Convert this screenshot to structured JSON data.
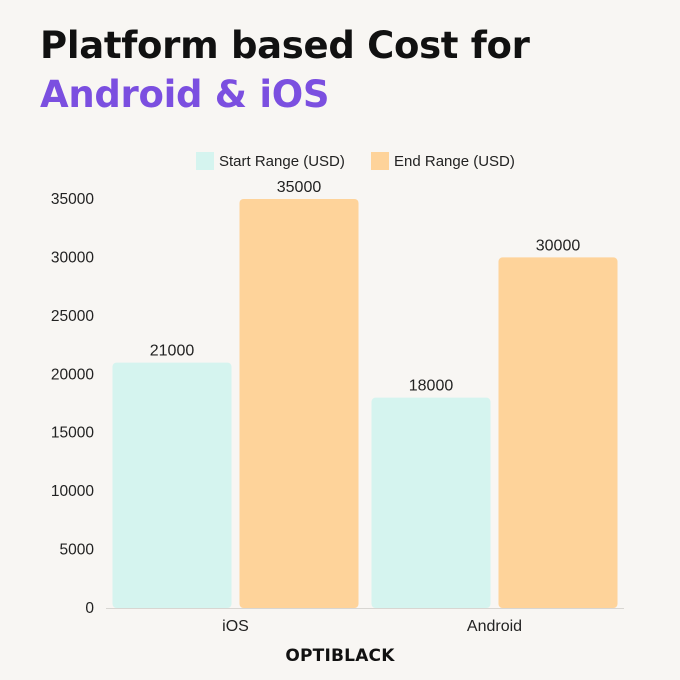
{
  "title": {
    "line1": "Platform based Cost for",
    "line2": "Android & iOS",
    "line2_color": "#7b4fe0"
  },
  "brand": "OPTIBLACK",
  "chart_data": {
    "type": "bar",
    "categories": [
      "iOS",
      "Android"
    ],
    "series": [
      {
        "name": "Start Range (USD)",
        "values": [
          21000,
          18000
        ],
        "color": "#d5f4ef"
      },
      {
        "name": "End Range (USD)",
        "values": [
          35000,
          30000
        ],
        "color": "#fed39a"
      }
    ],
    "yticks": [
      0,
      5000,
      10000,
      15000,
      20000,
      25000,
      30000,
      35000
    ],
    "ylim": [
      0,
      35000
    ],
    "xlabel": "",
    "ylabel": "",
    "grid": false,
    "legend_position": "top-center",
    "data_labels": true
  }
}
